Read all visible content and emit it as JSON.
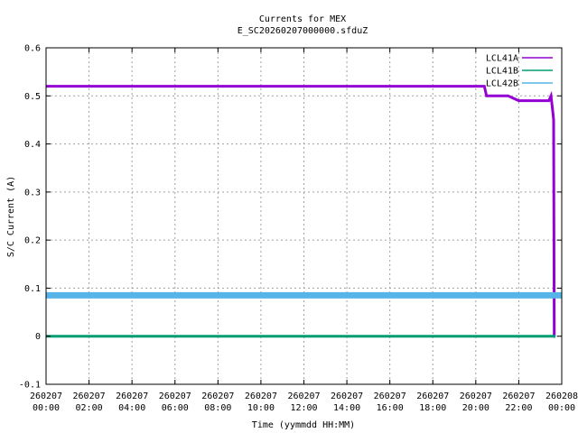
{
  "chart_data": {
    "type": "line",
    "title": "Currents for MEX",
    "subtitle": "E_SC20260207000000.sfduZ",
    "xlabel": "Time (yymmdd HH:MM)",
    "ylabel": "S/C Current (A)",
    "ylim": [
      -0.1,
      0.6
    ],
    "xlim_hours": [
      0,
      24
    ],
    "grid": true,
    "legend_position": "top-right",
    "yticks": [
      {
        "value": -0.1,
        "label": "-0.1"
      },
      {
        "value": 0,
        "label": "0"
      },
      {
        "value": 0.1,
        "label": "0.1"
      },
      {
        "value": 0.2,
        "label": "0.2"
      },
      {
        "value": 0.3,
        "label": "0.3"
      },
      {
        "value": 0.4,
        "label": "0.4"
      },
      {
        "value": 0.5,
        "label": "0.5"
      },
      {
        "value": 0.6,
        "label": "0.6"
      }
    ],
    "xticks": [
      {
        "hour": 0,
        "date": "260207",
        "time": "00:00"
      },
      {
        "hour": 2,
        "date": "260207",
        "time": "02:00"
      },
      {
        "hour": 4,
        "date": "260207",
        "time": "04:00"
      },
      {
        "hour": 6,
        "date": "260207",
        "time": "06:00"
      },
      {
        "hour": 8,
        "date": "260207",
        "time": "08:00"
      },
      {
        "hour": 10,
        "date": "260207",
        "time": "10:00"
      },
      {
        "hour": 12,
        "date": "260207",
        "time": "12:00"
      },
      {
        "hour": 14,
        "date": "260207",
        "time": "14:00"
      },
      {
        "hour": 16,
        "date": "260207",
        "time": "16:00"
      },
      {
        "hour": 18,
        "date": "260207",
        "time": "18:00"
      },
      {
        "hour": 20,
        "date": "260207",
        "time": "20:00"
      },
      {
        "hour": 22,
        "date": "260207",
        "time": "22:00"
      },
      {
        "hour": 24,
        "date": "260208",
        "time": "00:00"
      }
    ],
    "series": [
      {
        "name": "LCL41A",
        "color": "#9400d3",
        "x_hours": [
          0,
          2,
          4,
          6,
          8,
          10,
          12,
          14,
          16,
          18,
          20,
          20.4,
          20.5,
          21.0,
          21.5,
          22.0,
          22.5,
          23.0,
          23.4,
          23.5,
          23.6,
          23.62,
          23.65,
          23.7
        ],
        "values": [
          0.52,
          0.52,
          0.52,
          0.52,
          0.52,
          0.52,
          0.52,
          0.52,
          0.52,
          0.52,
          0.52,
          0.52,
          0.5,
          0.5,
          0.5,
          0.49,
          0.49,
          0.49,
          0.49,
          0.5,
          0.46,
          0.45,
          0.0,
          0.0
        ]
      },
      {
        "name": "LCL41B",
        "color": "#009e73",
        "x_hours": [
          0,
          4,
          8,
          12,
          16,
          20,
          23.7
        ],
        "values": [
          0.0,
          0.0,
          0.0,
          0.0,
          0.0,
          0.0,
          0.0
        ]
      },
      {
        "name": "LCL42B",
        "color": "#56b4e9",
        "x_hours": [
          0,
          4,
          8,
          12,
          16,
          20,
          24
        ],
        "values": [
          0.085,
          0.085,
          0.085,
          0.085,
          0.085,
          0.085,
          0.085
        ]
      }
    ]
  }
}
